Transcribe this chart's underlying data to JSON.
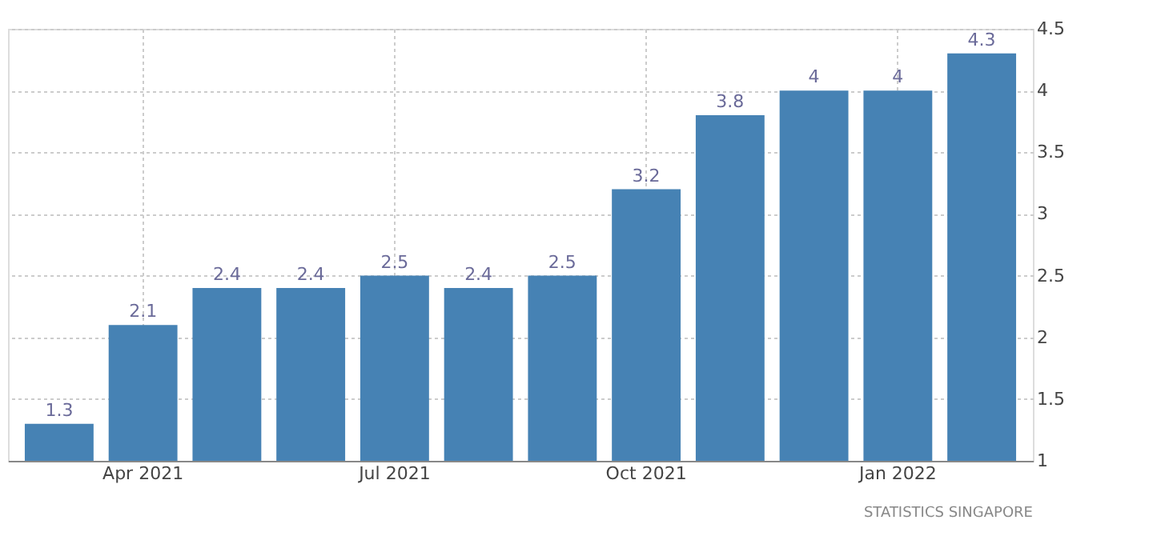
{
  "chart_data": {
    "type": "bar",
    "categories": [
      null,
      "Apr 2021",
      null,
      null,
      "Jul 2021",
      null,
      null,
      "Oct 2021",
      null,
      null,
      "Jan 2022",
      null
    ],
    "values": [
      1.3,
      2.1,
      2.4,
      2.4,
      2.5,
      2.4,
      2.5,
      3.2,
      3.8,
      4,
      4,
      4.3
    ],
    "color": "#4682b4",
    "ylim": [
      1,
      4.5
    ],
    "yticks": [
      1,
      1.5,
      2,
      2.5,
      3,
      3.5,
      4,
      4.5
    ],
    "grid": true,
    "data_labels": true,
    "annotations": [
      "STATISTICS SINGAPORE"
    ]
  }
}
